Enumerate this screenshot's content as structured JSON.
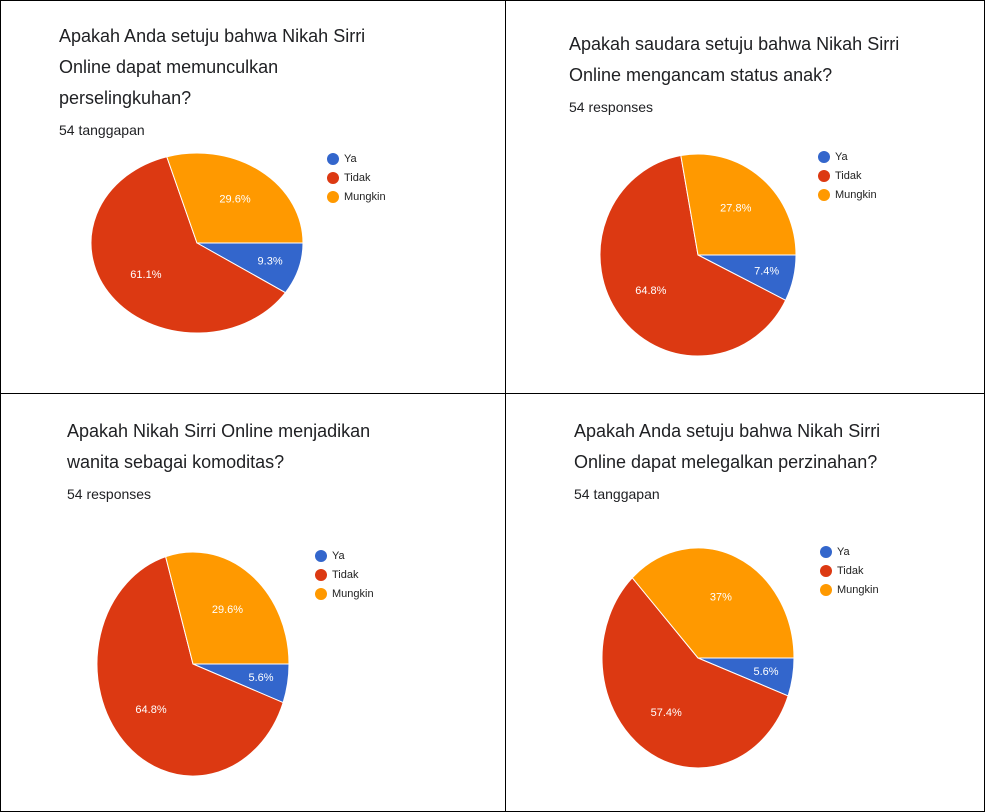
{
  "chart_data": [
    {
      "type": "pie",
      "title": "Apakah Anda setuju bahwa Nikah Sirri Online dapat memunculkan perselingkuhan?",
      "subtitle": "54 tanggapan",
      "categories": [
        "Ya",
        "Tidak",
        "Mungkin"
      ],
      "values": [
        9.3,
        61.1,
        29.6
      ],
      "value_labels": [
        "9.3%",
        "61.1%",
        "29.6%"
      ],
      "colors": [
        "#3366cc",
        "#dc3912",
        "#ff9900"
      ],
      "legend": "right"
    },
    {
      "type": "pie",
      "title": "Apakah saudara setuju bahwa Nikah Sirri Online mengancam status anak?",
      "subtitle": "54 responses",
      "categories": [
        "Ya",
        "Tidak",
        "Mungkin"
      ],
      "values": [
        7.4,
        64.8,
        27.8
      ],
      "value_labels": [
        "7.4%",
        "64.8%",
        "27.8%"
      ],
      "colors": [
        "#3366cc",
        "#dc3912",
        "#ff9900"
      ],
      "legend": "right"
    },
    {
      "type": "pie",
      "title": "Apakah Nikah Sirri Online menjadikan wanita sebagai komoditas?",
      "subtitle": "54 responses",
      "categories": [
        "Ya",
        "Tidak",
        "Mungkin"
      ],
      "values": [
        5.6,
        64.8,
        29.6
      ],
      "value_labels": [
        "5.6%",
        "64.8%",
        "29.6%"
      ],
      "colors": [
        "#3366cc",
        "#dc3912",
        "#ff9900"
      ],
      "legend": "right"
    },
    {
      "type": "pie",
      "title": "Apakah Anda setuju bahwa Nikah Sirri Online dapat melegalkan perzinahan?",
      "subtitle": "54 tanggapan",
      "categories": [
        "Ya",
        "Tidak",
        "Mungkin"
      ],
      "values": [
        5.6,
        57.4,
        37
      ],
      "value_labels": [
        "5.6%",
        "57.4%",
        "37%"
      ],
      "colors": [
        "#3366cc",
        "#dc3912",
        "#ff9900"
      ],
      "legend": "right"
    }
  ]
}
